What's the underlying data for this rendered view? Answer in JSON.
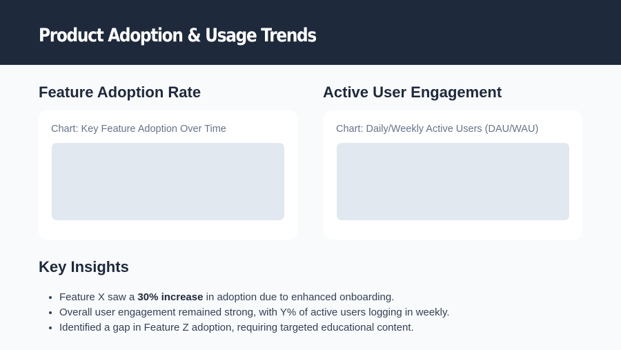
{
  "title": "Product Adoption & Usage Trends",
  "sections": [
    {
      "heading": "Feature Adoption Rate",
      "caption": "Chart: Key Feature Adoption Over Time"
    },
    {
      "heading": "Active User Engagement",
      "caption": "Chart: Daily/Weekly Active Users (DAU/WAU)"
    }
  ],
  "insights": {
    "heading": "Key Insights",
    "items": [
      {
        "pre": "Feature X saw a ",
        "bold": "30% increase",
        "post": " in adoption due to enhanced onboarding."
      },
      {
        "text": "Overall user engagement remained strong, with Y% of active users logging in weekly."
      },
      {
        "text": "Identified a gap in Feature Z adoption, requiring targeted educational content."
      }
    ]
  }
}
